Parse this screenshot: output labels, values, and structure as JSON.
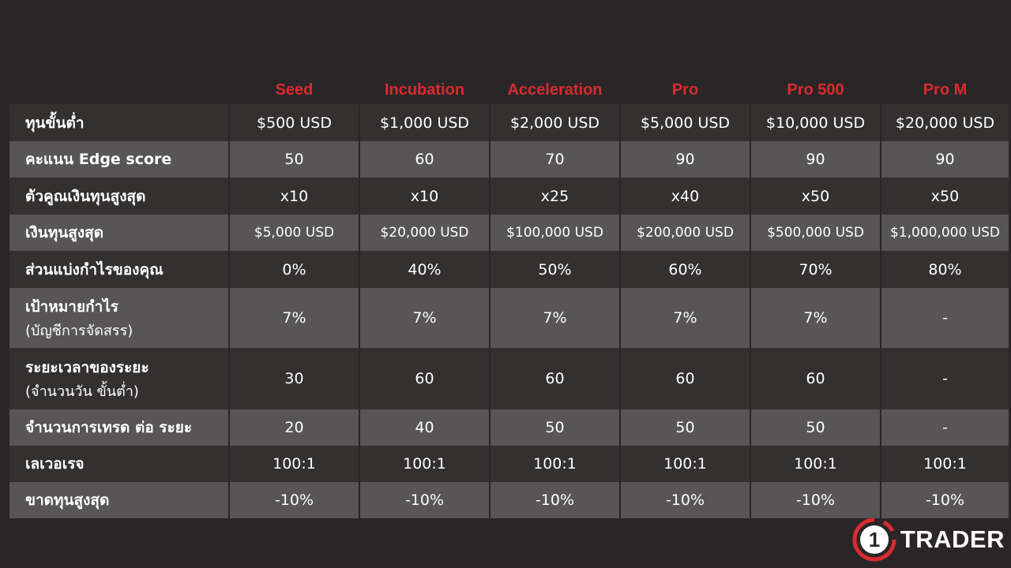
{
  "columns": [
    "Seed",
    "Incubation",
    "Acceleration",
    "Pro",
    "Pro 500",
    "Pro M"
  ],
  "rows": [
    {
      "label": "ทุนขั้นต่ำ",
      "sub": "",
      "values": [
        "$500 USD",
        "$1,000 USD",
        "$2,000 USD",
        "$5,000 USD",
        "$10,000 USD",
        "$20,000 USD"
      ]
    },
    {
      "label": "คะแนน Edge score",
      "sub": "",
      "values": [
        "50",
        "60",
        "70",
        "90",
        "90",
        "90"
      ]
    },
    {
      "label": "ตัวคูณเงินทุนสูงสุด",
      "sub": "",
      "values": [
        "x10",
        "x10",
        "x25",
        "x40",
        "x50",
        "x50"
      ]
    },
    {
      "label": "เงินทุนสูงสุด",
      "sub": "",
      "values": [
        "$5,000 USD",
        "$20,000 USD",
        "$100,000 USD",
        "$200,000 USD",
        "$500,000 USD",
        "$1,000,000 USD"
      ]
    },
    {
      "label": "ส่วนแบ่งกำไรของคุณ",
      "sub": "",
      "values": [
        "0%",
        "40%",
        "50%",
        "60%",
        "70%",
        "80%"
      ]
    },
    {
      "label": "เป้าหมายกำไร",
      "sub": "(บัญชีการจัดสรร)",
      "values": [
        "7%",
        "7%",
        "7%",
        "7%",
        "7%",
        "-"
      ]
    },
    {
      "label": "ระยะเวลาของระยะ",
      "sub": "(จำนวนวัน ขั้นต่ำ)",
      "values": [
        "30",
        "60",
        "60",
        "60",
        "60",
        "-"
      ]
    },
    {
      "label": "จำนวนการเทรด ต่อ ระยะ",
      "sub": "",
      "values": [
        "20",
        "40",
        "50",
        "50",
        "50",
        "-"
      ]
    },
    {
      "label": "เลเวอเรจ",
      "sub": "",
      "values": [
        "100:1",
        "100:1",
        "100:1",
        "100:1",
        "100:1",
        "100:1"
      ]
    },
    {
      "label": "ขาดทุนสูงสุด",
      "sub": "",
      "values": [
        "-10%",
        "-10%",
        "-10%",
        "-10%",
        "-10%",
        "-10%"
      ]
    }
  ],
  "logo": {
    "number": "1",
    "text": "TRADER"
  },
  "colors": {
    "accent": "#d92b30",
    "row_dark": "#333030",
    "row_light": "#575556",
    "background": "#2a2627"
  }
}
